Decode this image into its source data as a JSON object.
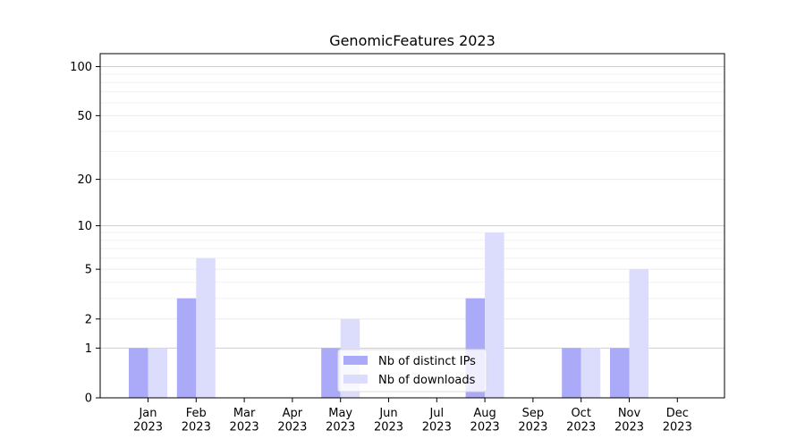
{
  "chart_data": {
    "type": "bar",
    "title": "GenomicFeatures 2023",
    "xlabel": "",
    "ylabel": "",
    "y_scale": "log(1+y)",
    "ylim": [
      0,
      120
    ],
    "y_ticks": [
      0,
      1,
      2,
      5,
      10,
      20,
      50,
      100
    ],
    "grid": "horizontal",
    "legend_position": "bottom-center",
    "categories": [
      "Jan\n2023",
      "Feb\n2023",
      "Mar\n2023",
      "Apr\n2023",
      "May\n2023",
      "Jun\n2023",
      "Jul\n2023",
      "Aug\n2023",
      "Sep\n2023",
      "Oct\n2023",
      "Nov\n2023",
      "Dec\n2023"
    ],
    "series": [
      {
        "name": "Nb of distinct IPs",
        "color": "#aaaaf8",
        "values": [
          1,
          3,
          0,
          0,
          1,
          0,
          0,
          3,
          0,
          1,
          1,
          0
        ]
      },
      {
        "name": "Nb of downloads",
        "color": "#dcdcfc",
        "values": [
          1,
          6,
          0,
          0,
          2,
          0,
          0,
          9,
          0,
          1,
          5,
          0
        ]
      }
    ]
  }
}
